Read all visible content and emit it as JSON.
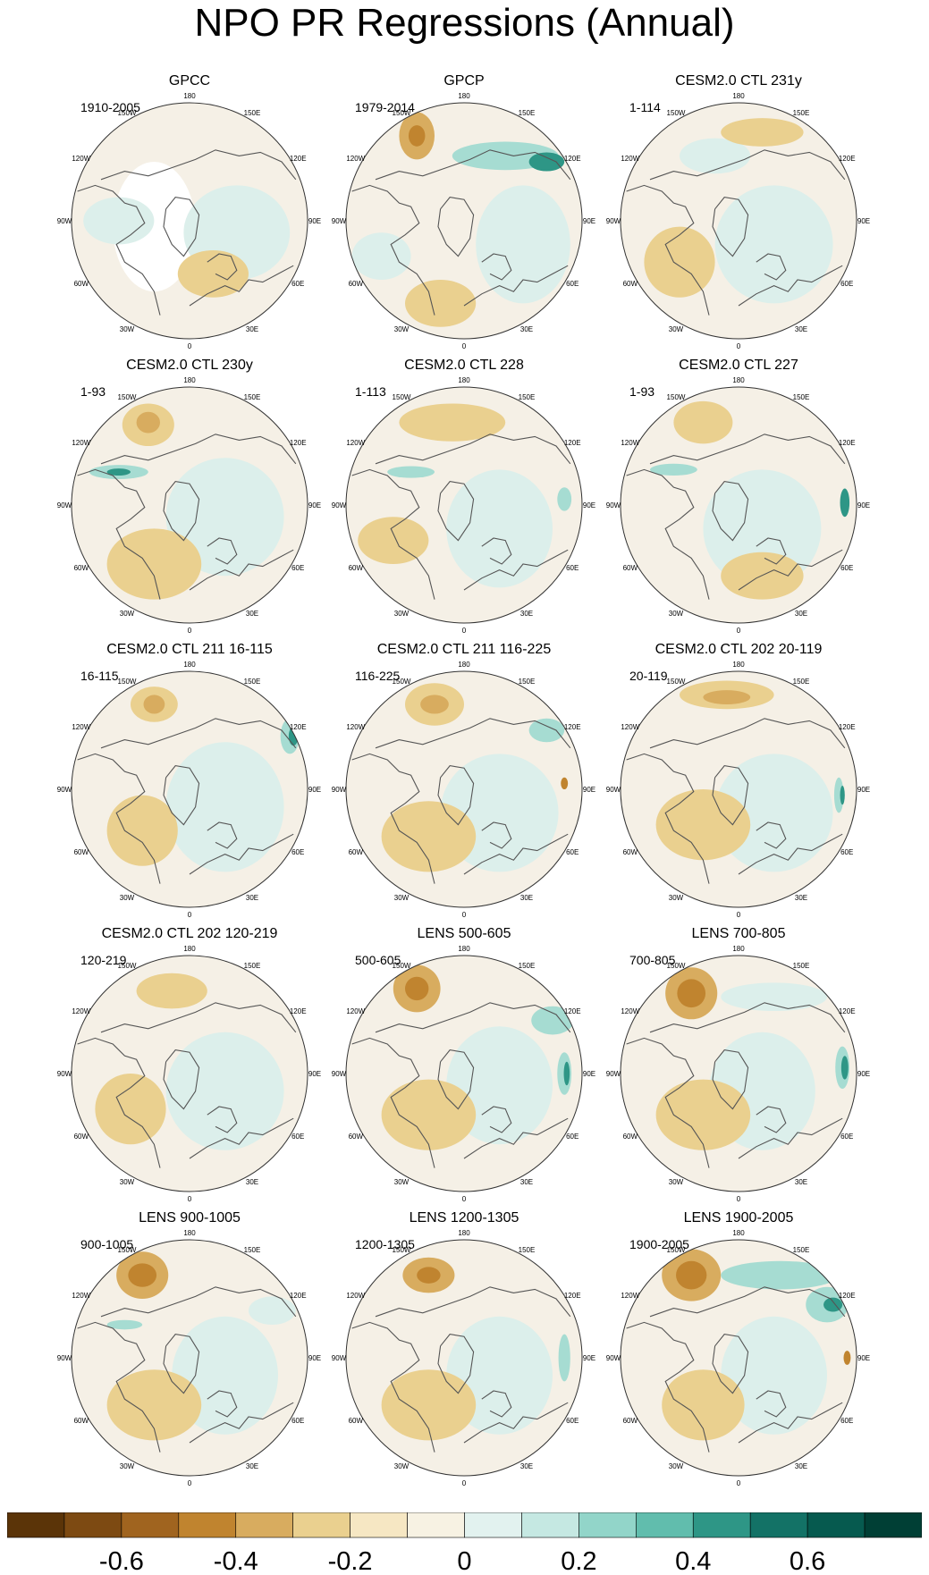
{
  "title": "NPO PR Regressions (Annual)",
  "panels": [
    {
      "title": "GPCC",
      "period": "1910-2005"
    },
    {
      "title": "GPCP",
      "period": "1979-2014"
    },
    {
      "title": "CESM2.0 CTL 231y",
      "period": "1-114"
    },
    {
      "title": "CESM2.0 CTL 230y",
      "period": "1-93"
    },
    {
      "title": "CESM2.0 CTL 228",
      "period": "1-113"
    },
    {
      "title": "CESM2.0 CTL 227",
      "period": "1-93"
    },
    {
      "title": "CESM2.0 CTL 211 16-115",
      "period": "16-115"
    },
    {
      "title": "CESM2.0 CTL 211 116-225",
      "period": "116-225"
    },
    {
      "title": "CESM2.0 CTL 202 20-119",
      "period": "20-119"
    },
    {
      "title": "CESM2.0 CTL 202 120-219",
      "period": "120-219"
    },
    {
      "title": "LENS 500-605",
      "period": "500-605"
    },
    {
      "title": "LENS 700-805",
      "period": "700-805"
    },
    {
      "title": "LENS 900-1005",
      "period": "900-1005"
    },
    {
      "title": "LENS 1200-1305",
      "period": "1200-1305"
    },
    {
      "title": "LENS 1900-2005",
      "period": "1900-2005"
    }
  ],
  "longitude_labels": [
    "180",
    "150E",
    "120E",
    "90E",
    "60E",
    "30E",
    "0",
    "30W",
    "60W",
    "90W",
    "120W",
    "150W"
  ],
  "colorbar": {
    "colors": [
      "#5b3408",
      "#7d4a12",
      "#a0641f",
      "#c0842f",
      "#d8ac5f",
      "#ead08f",
      "#f6e7c3",
      "#f7f2e3",
      "#e2f2ef",
      "#c5e8e2",
      "#92d5c9",
      "#61bdad",
      "#2e9686",
      "#137266",
      "#065a4f",
      "#003f35"
    ],
    "tick_values": [
      -0.6,
      -0.4,
      -0.2,
      0,
      0.2,
      0.4,
      0.6
    ],
    "tick_labels": [
      "-0.6",
      "-0.4",
      "-0.2",
      "0",
      "0.2",
      "0.4",
      "0.6"
    ]
  },
  "map_colors": {
    "ocean_base": "#f5f0e6",
    "missing": "#ffffff",
    "coast": "#555555",
    "circle": "#333333",
    "neg_strong": "#c0842f",
    "neg_mid": "#d8ac5f",
    "neg_weak": "#ead08f",
    "pos_weak": "#dcefeb",
    "pos_mid": "#a6dcd2",
    "pos_strong": "#2e9686"
  }
}
